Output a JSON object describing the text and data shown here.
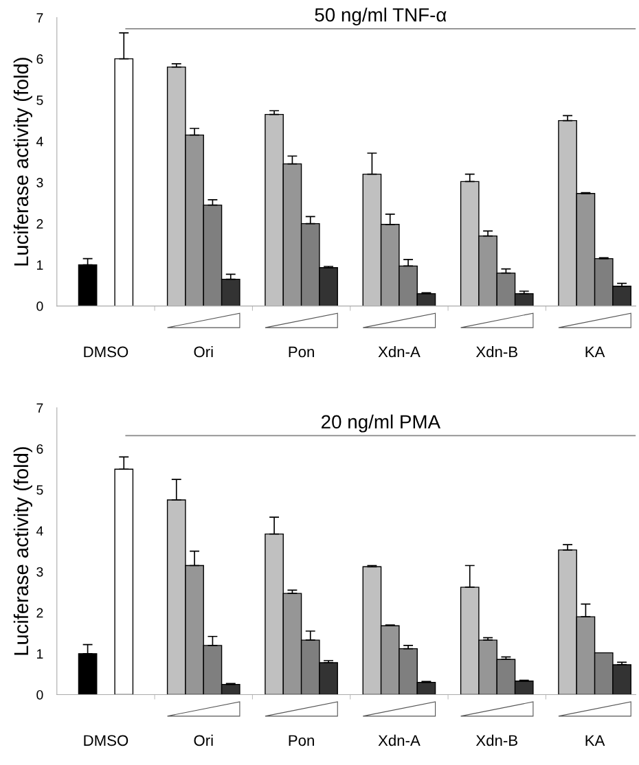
{
  "chart_data": [
    {
      "type": "bar",
      "ref_lines": [
        {
          "axis": "y",
          "value": 6.73,
          "label": "50 ng/ml TNF-α",
          "color": "#888888"
        }
      ],
      "ylabel": "Luciferase activity (fold)",
      "categories": [
        "DMSO",
        "Ori",
        "Pon",
        "Xdn-A",
        "Xdn-B",
        "KA"
      ],
      "ylim": [
        0,
        7
      ],
      "yticks": [
        0,
        1,
        2,
        3,
        4,
        5,
        6,
        7
      ],
      "grid": false,
      "legend": false,
      "series": [
        {
          "color": "#000000",
          "values": [
            1.0,
            null,
            null,
            null,
            null,
            null
          ],
          "errors": [
            [
              1.0,
              1.15
            ],
            null,
            null,
            null,
            null,
            null
          ]
        },
        {
          "color": "#ffffff",
          "values": [
            6.0,
            null,
            null,
            null,
            null,
            null
          ],
          "errors": [
            [
              6.0,
              6.63
            ],
            null,
            null,
            null,
            null,
            null
          ]
        },
        {
          "color": "#c0c0c0",
          "values": [
            null,
            5.8,
            4.65,
            3.2,
            3.02,
            4.5
          ],
          "errors": [
            null,
            [
              5.8,
              5.88
            ],
            [
              4.65,
              4.74
            ],
            [
              3.2,
              3.71
            ],
            [
              3.02,
              3.2
            ],
            [
              4.5,
              4.62
            ]
          ]
        },
        {
          "color": "#969696",
          "values": [
            null,
            4.15,
            3.45,
            1.98,
            1.7,
            2.73
          ],
          "errors": [
            null,
            [
              4.15,
              4.31
            ],
            [
              3.45,
              3.64
            ],
            [
              1.98,
              2.23
            ],
            [
              1.7,
              1.82
            ],
            [
              2.73,
              2.75
            ]
          ]
        },
        {
          "color": "#7f7f7f",
          "values": [
            null,
            2.45,
            2.0,
            0.97,
            0.8,
            1.15
          ],
          "errors": [
            null,
            [
              2.45,
              2.58
            ],
            [
              2.0,
              2.17
            ],
            [
              0.97,
              1.13
            ],
            [
              0.8,
              0.9
            ],
            [
              1.15,
              1.17
            ]
          ]
        },
        {
          "color": "#333333",
          "values": [
            null,
            0.65,
            0.93,
            0.3,
            0.3,
            0.48
          ],
          "errors": [
            null,
            [
              0.65,
              0.77
            ],
            [
              0.93,
              0.96
            ],
            [
              0.3,
              0.32
            ],
            [
              0.3,
              0.36
            ],
            [
              0.48,
              0.55
            ]
          ]
        }
      ]
    },
    {
      "type": "bar",
      "ref_lines": [
        {
          "axis": "y",
          "value": 6.32,
          "label": "20 ng/ml PMA",
          "color": "#888888"
        }
      ],
      "ylabel": "Luciferase activity (fold)",
      "categories": [
        "DMSO",
        "Ori",
        "Pon",
        "Xdn-A",
        "Xdn-B",
        "KA"
      ],
      "ylim": [
        0,
        7
      ],
      "yticks": [
        0,
        1,
        2,
        3,
        4,
        5,
        6,
        7
      ],
      "grid": false,
      "legend": false,
      "series": [
        {
          "color": "#000000",
          "values": [
            1.0,
            null,
            null,
            null,
            null,
            null
          ],
          "errors": [
            [
              1.0,
              1.22
            ],
            null,
            null,
            null,
            null,
            null
          ]
        },
        {
          "color": "#ffffff",
          "values": [
            5.5,
            null,
            null,
            null,
            null,
            null
          ],
          "errors": [
            [
              5.5,
              5.8
            ],
            null,
            null,
            null,
            null,
            null
          ]
        },
        {
          "color": "#c0c0c0",
          "values": [
            null,
            4.75,
            3.92,
            3.12,
            2.62,
            3.53
          ],
          "errors": [
            null,
            [
              4.75,
              5.25
            ],
            [
              3.92,
              4.33
            ],
            [
              3.12,
              3.15
            ],
            [
              2.62,
              3.15
            ],
            [
              3.53,
              3.66
            ]
          ]
        },
        {
          "color": "#969696",
          "values": [
            null,
            3.15,
            2.47,
            1.68,
            1.33,
            1.9
          ],
          "errors": [
            null,
            [
              3.15,
              3.5
            ],
            [
              2.47,
              2.55
            ],
            [
              1.68,
              1.7
            ],
            [
              1.33,
              1.39
            ],
            [
              1.9,
              2.21
            ]
          ]
        },
        {
          "color": "#7f7f7f",
          "values": [
            null,
            1.2,
            1.33,
            1.12,
            0.86,
            1.02
          ],
          "errors": [
            null,
            [
              1.2,
              1.42
            ],
            [
              1.33,
              1.55
            ],
            [
              1.12,
              1.2
            ],
            [
              0.86,
              0.92
            ],
            null
          ]
        },
        {
          "color": "#333333",
          "values": [
            null,
            0.25,
            0.78,
            0.3,
            0.33,
            0.73
          ],
          "errors": [
            null,
            [
              0.25,
              0.27
            ],
            [
              0.78,
              0.83
            ],
            [
              0.3,
              0.32
            ],
            [
              0.33,
              0.35
            ],
            [
              0.73,
              0.79
            ]
          ]
        }
      ]
    }
  ]
}
